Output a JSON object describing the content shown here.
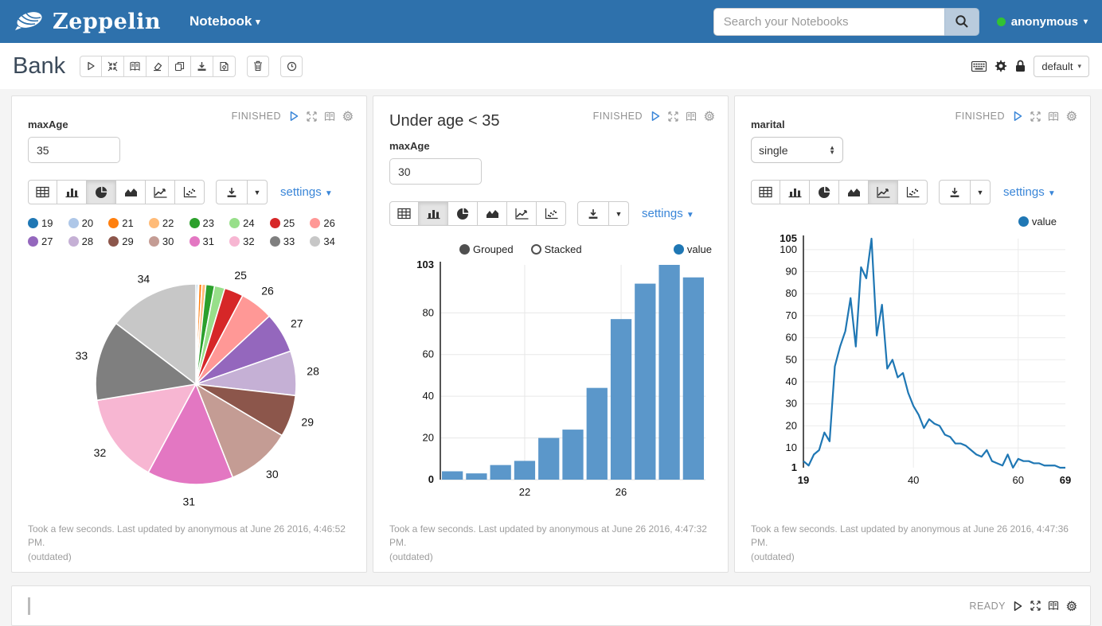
{
  "navbar": {
    "brand": "Zeppelin",
    "menu_label": "Notebook",
    "search_placeholder": "Search your Notebooks",
    "user_label": "anonymous",
    "colors": {
      "bg": "#2e71ac",
      "user_status": "#32c232"
    }
  },
  "note_header": {
    "title": "Bank",
    "toolbar_icons": [
      "play",
      "collapse",
      "book",
      "eraser",
      "clone",
      "download",
      "export"
    ],
    "trash_icon": "trash",
    "clock_icon": "clock",
    "right_icons": [
      "keyboard",
      "gear",
      "lock"
    ],
    "interpreter_label": "default"
  },
  "chart_tabs": [
    "table",
    "bar",
    "pie",
    "area",
    "line",
    "scatter"
  ],
  "paragraphs": [
    {
      "form_label": "maxAge",
      "input_value": "35",
      "status": "FINISHED",
      "selected_tab": "pie",
      "settings_label": "settings",
      "footer_line1": "Took a few seconds. Last updated by anonymous at June 26 2016, 4:46:52 PM.",
      "footer_line2": "(outdated)"
    },
    {
      "title": "Under age < 35",
      "form_label": "maxAge",
      "input_value": "30",
      "status": "FINISHED",
      "selected_tab": "bar",
      "settings_label": "settings",
      "controls": [
        "Grouped",
        "Stacked"
      ],
      "selected_control": "Grouped",
      "legend_label": "value",
      "footer_line1": "Took a few seconds. Last updated by anonymous at June 26 2016, 4:47:32 PM.",
      "footer_line2": "(outdated)"
    },
    {
      "form_label": "marital",
      "select_value": "single",
      "status": "FINISHED",
      "selected_tab": "line",
      "settings_label": "settings",
      "legend_label": "value",
      "footer_line1": "Took a few seconds. Last updated by anonymous at June 26 2016, 4:47:36 PM.",
      "footer_line2": "(outdated)"
    }
  ],
  "bottom_paragraph": {
    "status": "READY"
  },
  "chart_data": [
    {
      "type": "pie",
      "categories": [
        "19",
        "20",
        "21",
        "22",
        "23",
        "24",
        "25",
        "26",
        "27",
        "28",
        "29",
        "30",
        "31",
        "32",
        "33",
        "34"
      ],
      "values": [
        4,
        3,
        7,
        9,
        20,
        24,
        44,
        77,
        94,
        103,
        97,
        150,
        199,
        209,
        186,
        210
      ],
      "colors": [
        "#1f77b4",
        "#aec7e8",
        "#ff7f0e",
        "#ffbb78",
        "#2ca02c",
        "#98df8a",
        "#d62728",
        "#ff9896",
        "#9467bd",
        "#c5b0d5",
        "#8c564b",
        "#c49c94",
        "#e377c2",
        "#f7b6d2",
        "#7f7f7f",
        "#c7c7c7"
      ],
      "label_threshold_pct": 2.5,
      "legend_position": "top"
    },
    {
      "type": "bar",
      "series": [
        {
          "name": "value",
          "color": "#5b97ca"
        }
      ],
      "categories": [
        19,
        20,
        21,
        22,
        23,
        24,
        25,
        26,
        27,
        28,
        29
      ],
      "values": [
        4,
        3,
        7,
        9,
        20,
        24,
        44,
        77,
        94,
        103,
        97
      ],
      "ylim": [
        0,
        103
      ],
      "yticks": [
        0,
        20,
        40,
        60,
        80,
        103
      ],
      "xticks": [
        22,
        26
      ],
      "grid": true,
      "legend_dot_color": "#1f77b4"
    },
    {
      "type": "line",
      "series": [
        {
          "name": "value",
          "color": "#1f77b4"
        }
      ],
      "x": [
        19,
        20,
        21,
        22,
        23,
        24,
        25,
        26,
        27,
        28,
        29,
        30,
        31,
        32,
        33,
        34,
        35,
        36,
        37,
        38,
        39,
        40,
        41,
        42,
        43,
        44,
        45,
        46,
        47,
        48,
        49,
        50,
        51,
        52,
        53,
        54,
        55,
        56,
        57,
        58,
        59,
        60,
        61,
        62,
        63,
        64,
        65,
        66,
        67,
        68,
        69
      ],
      "values": [
        4,
        2,
        7,
        9,
        17,
        13,
        47,
        56,
        63,
        78,
        56,
        92,
        87,
        105,
        61,
        75,
        46,
        50,
        42,
        44,
        35,
        29,
        25,
        19,
        23,
        21,
        20,
        16,
        15,
        12,
        12,
        11,
        9,
        7,
        6,
        9,
        4,
        3,
        2,
        7,
        1,
        5,
        4,
        4,
        3,
        3,
        2,
        2,
        2,
        1,
        1
      ],
      "ylim": [
        1,
        105
      ],
      "yticks": [
        1,
        10,
        20,
        30,
        40,
        50,
        60,
        70,
        80,
        90,
        100,
        105
      ],
      "xticks": [
        19,
        40,
        60,
        69
      ],
      "xlim": [
        19,
        69
      ],
      "grid": true,
      "legend_dot_color": "#1f77b4"
    }
  ]
}
